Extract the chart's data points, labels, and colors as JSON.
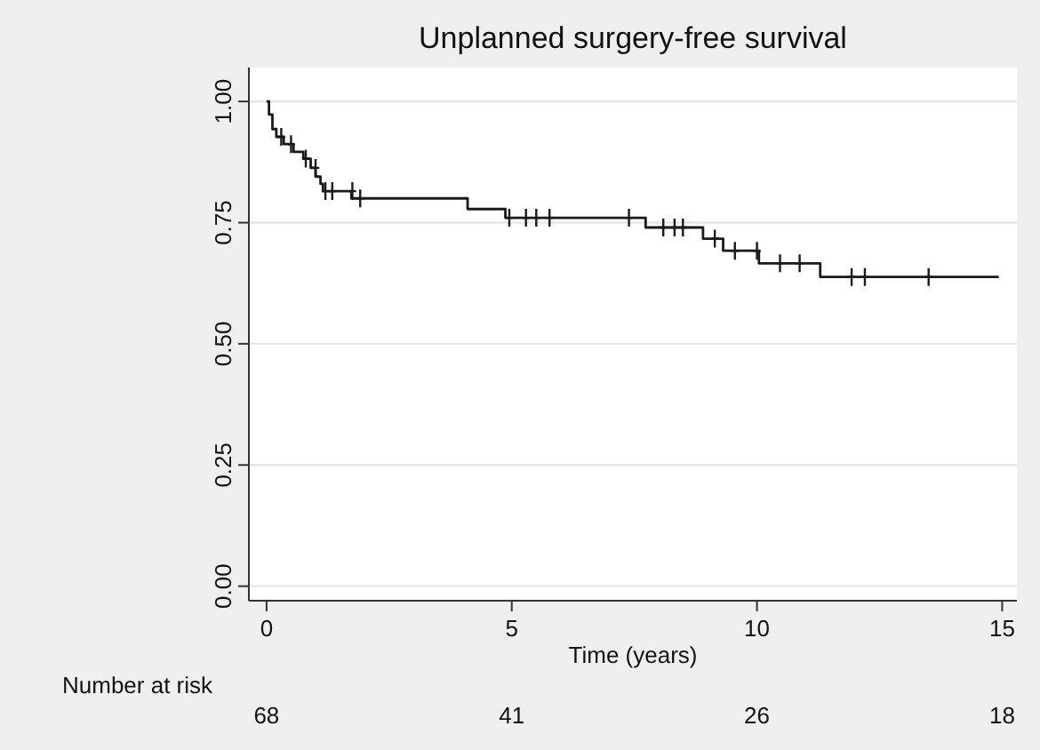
{
  "chart_data": {
    "type": "step",
    "title": "Unplanned surgery-free survival",
    "xlabel": "Time (years)",
    "xlim": [
      -0.36,
      15.3
    ],
    "xticks": [
      0,
      5,
      10,
      15
    ],
    "ylim": [
      -0.03,
      1.07
    ],
    "yticks": [
      {
        "value": 0,
        "label": "0.00"
      },
      {
        "value": 0.25,
        "label": "0.25"
      },
      {
        "value": 0.5,
        "label": "0.50"
      },
      {
        "value": 0.75,
        "label": "0.75"
      },
      {
        "value": 1,
        "label": "1.00"
      }
    ],
    "grid": "y",
    "series": [
      {
        "color": "#1a1a1a",
        "x": [
          0,
          0.05,
          0.12,
          0.2,
          0.35,
          0.55,
          0.75,
          0.9,
          1.0,
          1.1,
          1.15,
          1.73,
          4.1,
          4.87,
          7.73,
          8.9,
          9.31,
          10.04,
          11.29,
          14.93
        ],
        "values": [
          1.0,
          0.973,
          0.943,
          0.927,
          0.912,
          0.896,
          0.882,
          0.863,
          0.845,
          0.83,
          0.815,
          0.8,
          0.778,
          0.76,
          0.74,
          0.717,
          0.692,
          0.666,
          0.638,
          0.638
        ]
      },
      {
        "type": "scatter",
        "marker": "cross",
        "color": "#1a1a1a",
        "x": [
          0.3,
          0.5,
          0.8,
          1.0,
          1.2,
          1.34,
          1.75,
          1.91,
          4.95,
          5.29,
          5.5,
          5.77,
          7.39,
          8.09,
          8.32,
          8.49,
          9.14,
          9.55,
          10.0,
          10.47,
          10.87,
          11.93,
          12.2,
          13.5
        ],
        "values": [
          0.927,
          0.912,
          0.882,
          0.863,
          0.815,
          0.815,
          0.815,
          0.8,
          0.76,
          0.76,
          0.76,
          0.76,
          0.76,
          0.74,
          0.74,
          0.74,
          0.717,
          0.692,
          0.692,
          0.666,
          0.666,
          0.638,
          0.638,
          0.638
        ]
      }
    ],
    "annotations": [
      "Number at risk",
      "68",
      "41",
      "26",
      "18"
    ]
  }
}
